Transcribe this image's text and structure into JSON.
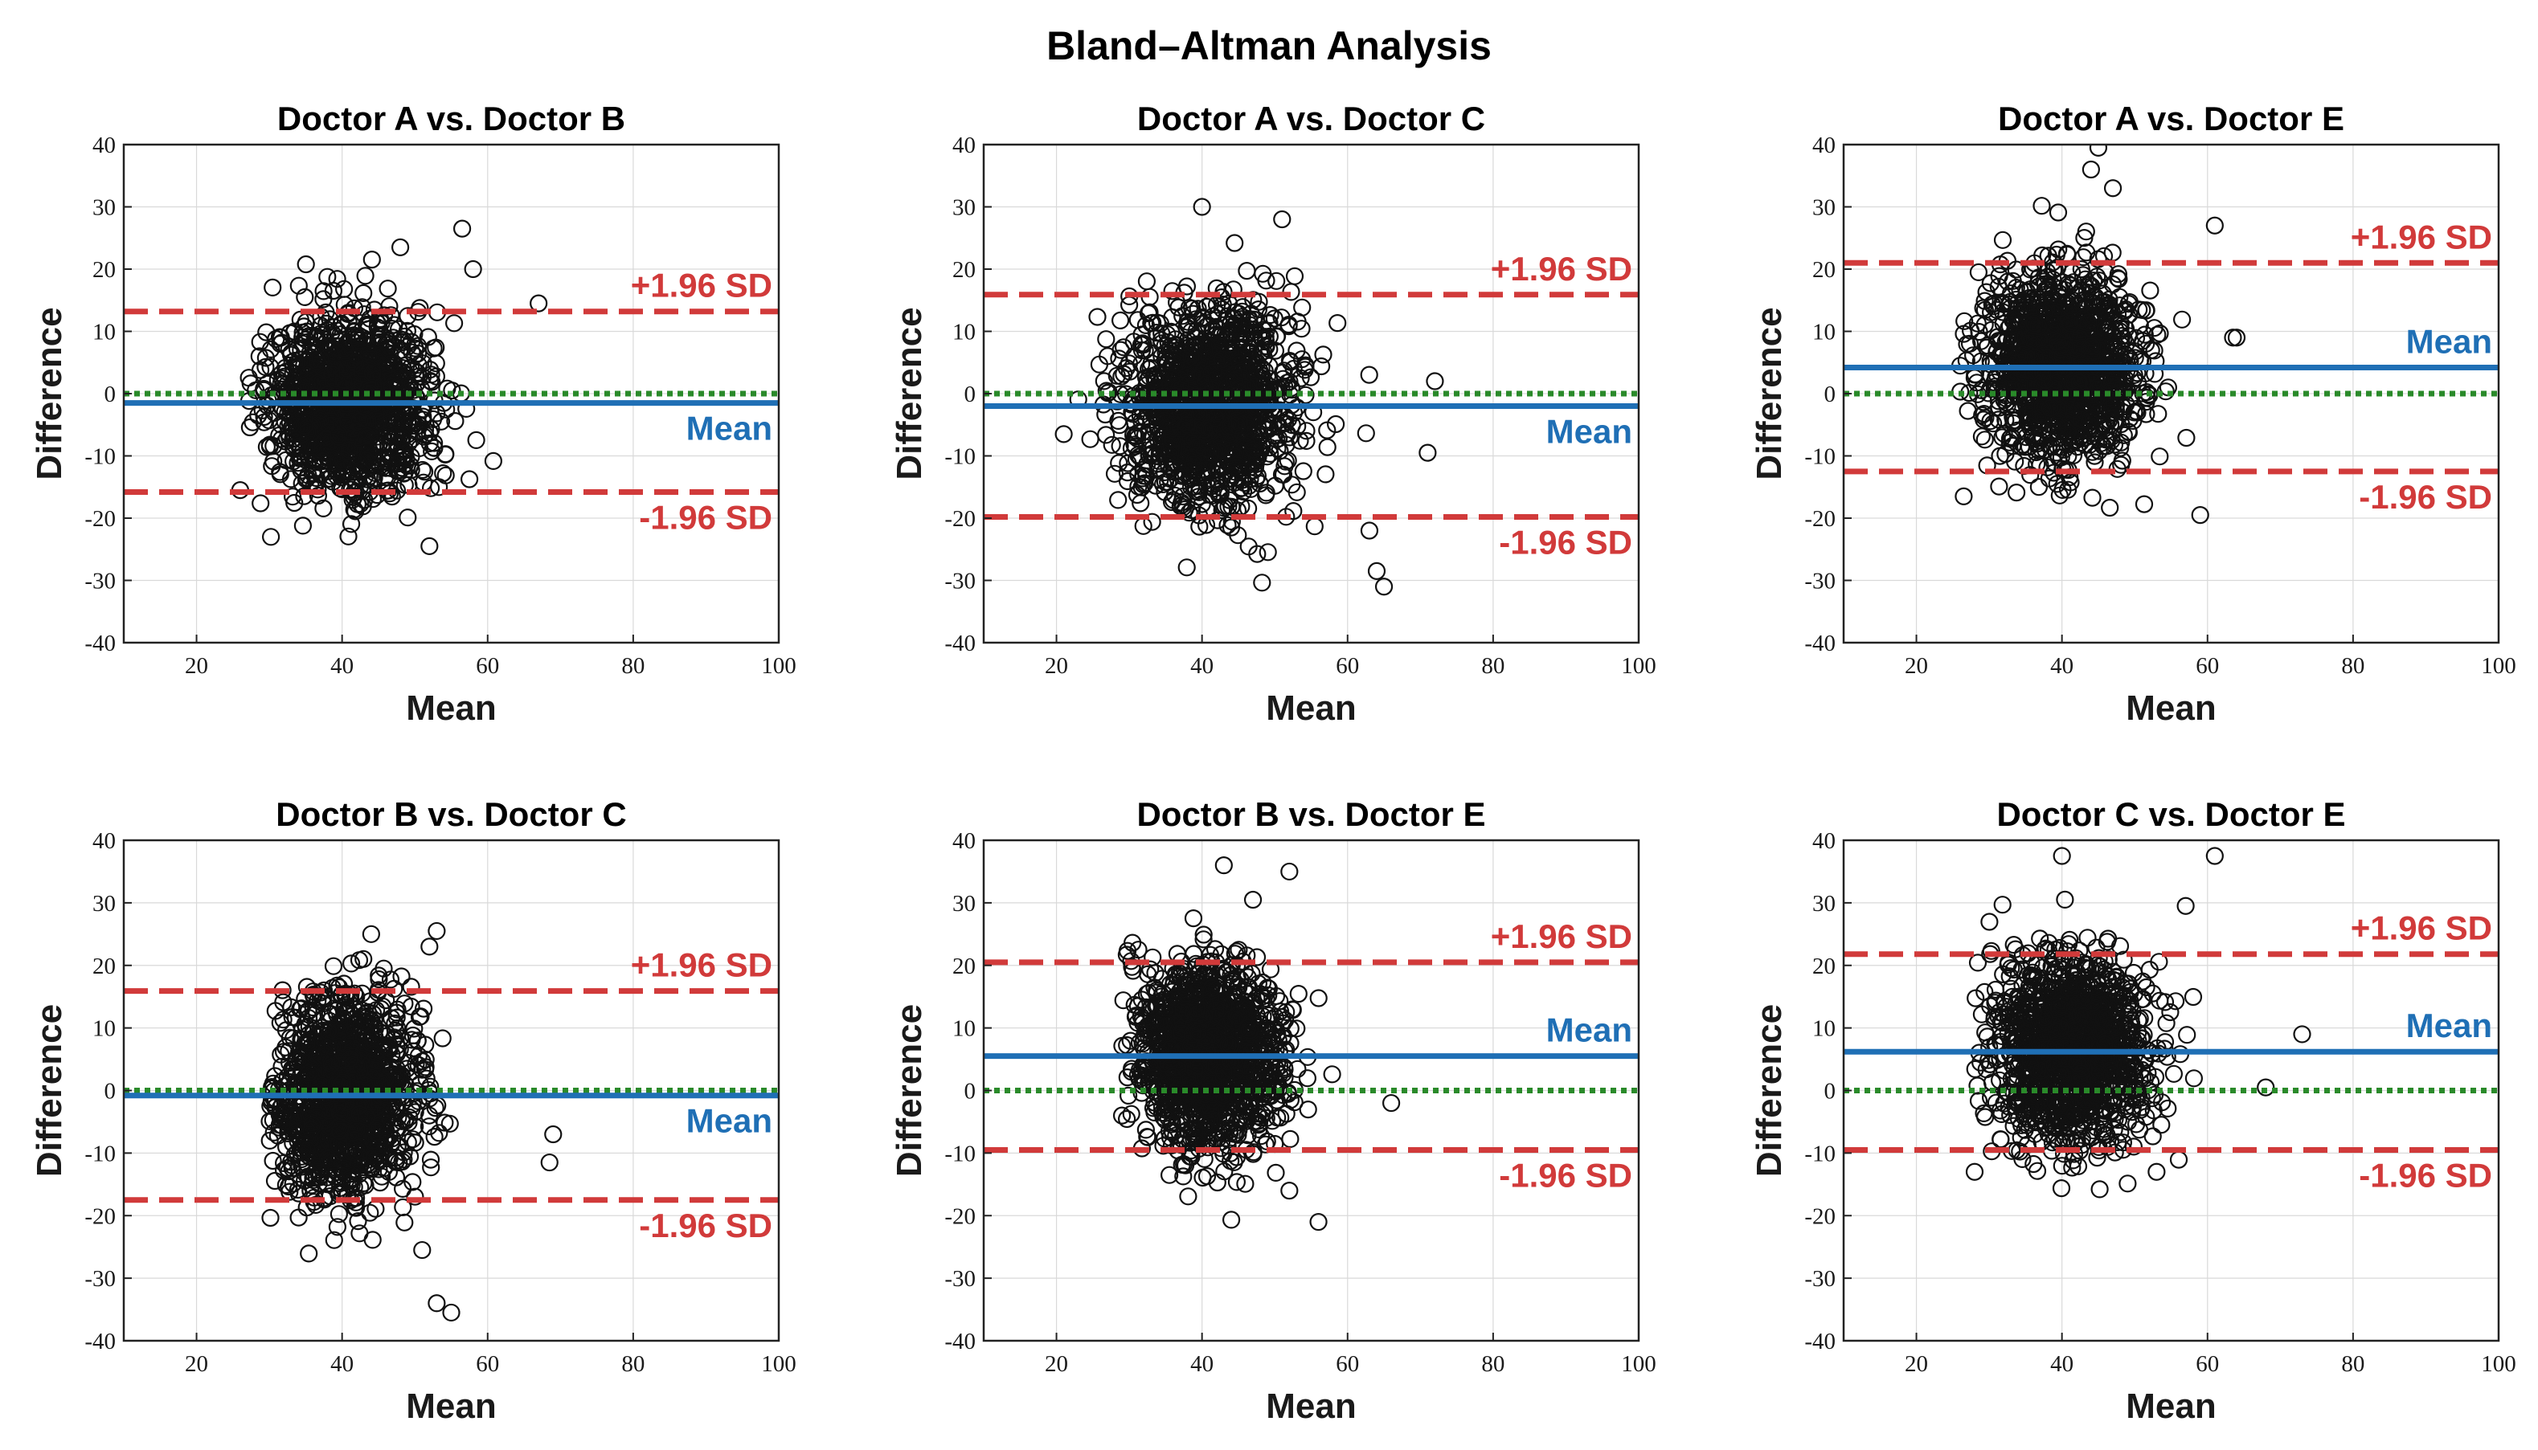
{
  "figure": {
    "title": "Bland–Altman Analysis"
  },
  "style": {
    "mean_color": "#1f6fb5",
    "limit_color": "#d13a3a",
    "zero_color": "#2a8a2a",
    "point_color": "#111111"
  },
  "chart_data": [
    {
      "type": "scatter",
      "title": "Doctor A vs. Doctor B",
      "xlabel": "Mean",
      "ylabel": "Difference",
      "xlim": [
        10,
        100
      ],
      "ylim": [
        -40,
        40
      ],
      "xticks": [
        20,
        40,
        60,
        80,
        100
      ],
      "yticks": [
        40,
        30,
        20,
        10,
        0,
        -10,
        -20,
        -30,
        -40
      ],
      "mean_diff": -1.5,
      "upper_loa": 13.2,
      "lower_loa": -15.8,
      "labels": {
        "upper": "+1.96 SD",
        "mean": "Mean",
        "lower": "-1.96 SD"
      },
      "cluster": {
        "x_center": 41,
        "x_sd": 5.5,
        "x_range": [
          26,
          69
        ],
        "y_sd": 6.8,
        "y_range": [
          -25,
          27
        ]
      },
      "outliers": [
        [
          56.5,
          26.5
        ],
        [
          48,
          23.5
        ],
        [
          58,
          20
        ],
        [
          67,
          14.5
        ],
        [
          52,
          -24.5
        ],
        [
          26,
          -15.5
        ]
      ]
    },
    {
      "type": "scatter",
      "title": "Doctor A vs. Doctor C",
      "xlabel": "Mean",
      "ylabel": "Difference",
      "xlim": [
        10,
        100
      ],
      "ylim": [
        -40,
        40
      ],
      "xticks": [
        20,
        40,
        60,
        80,
        100
      ],
      "yticks": [
        40,
        30,
        20,
        10,
        0,
        -10,
        -20,
        -30,
        -40
      ],
      "mean_diff": -2.0,
      "upper_loa": 15.9,
      "lower_loa": -19.8,
      "labels": {
        "upper": "+1.96 SD",
        "mean": "Mean",
        "lower": "-1.96 SD"
      },
      "cluster": {
        "x_center": 41,
        "x_sd": 5.8,
        "x_range": [
          21,
          73
        ],
        "y_sd": 8.0,
        "y_range": [
          -31,
          30
        ]
      },
      "outliers": [
        [
          40,
          30
        ],
        [
          51,
          28
        ],
        [
          21,
          -6.5
        ],
        [
          72,
          2
        ],
        [
          71,
          -9.5
        ],
        [
          65,
          -31
        ],
        [
          64,
          -28.5
        ],
        [
          63,
          -22
        ]
      ]
    },
    {
      "type": "scatter",
      "title": "Doctor A vs. Doctor E",
      "xlabel": "Mean",
      "ylabel": "Difference",
      "xlim": [
        10,
        100
      ],
      "ylim": [
        -40,
        40
      ],
      "xticks": [
        20,
        40,
        60,
        80,
        100
      ],
      "yticks": [
        40,
        30,
        20,
        10,
        0,
        -10,
        -20,
        -30,
        -40
      ],
      "mean_diff": 4.2,
      "upper_loa": 21.0,
      "lower_loa": -12.5,
      "labels": {
        "upper": "+1.96 SD",
        "mean": "Mean",
        "lower": "-1.96 SD"
      },
      "cluster": {
        "x_center": 40,
        "x_sd": 5.2,
        "x_range": [
          26,
          64
        ],
        "y_sd": 7.5,
        "y_range": [
          -20,
          40
        ]
      },
      "outliers": [
        [
          45,
          39.5
        ],
        [
          44,
          36
        ],
        [
          47,
          33
        ],
        [
          61,
          27
        ],
        [
          63.5,
          9
        ],
        [
          64,
          9
        ],
        [
          59,
          -19.5
        ],
        [
          26.5,
          -16.5
        ]
      ]
    },
    {
      "type": "scatter",
      "title": "Doctor B vs. Doctor C",
      "xlabel": "Mean",
      "ylabel": "Difference",
      "xlim": [
        10,
        100
      ],
      "ylim": [
        -40,
        40
      ],
      "xticks": [
        20,
        40,
        60,
        80,
        100
      ],
      "yticks": [
        40,
        30,
        20,
        10,
        0,
        -10,
        -20,
        -30,
        -40
      ],
      "mean_diff": -0.8,
      "upper_loa": 15.9,
      "lower_loa": -17.5,
      "labels": {
        "upper": "+1.96 SD",
        "mean": "Mean",
        "lower": "-1.96 SD"
      },
      "cluster": {
        "x_center": 40,
        "x_sd": 5.2,
        "x_range": [
          30,
          70
        ],
        "y_sd": 8.2,
        "y_range": [
          -35,
          26
        ]
      },
      "outliers": [
        [
          53,
          25.5
        ],
        [
          44,
          25
        ],
        [
          52,
          23
        ],
        [
          55,
          -35.5
        ],
        [
          53,
          -34
        ],
        [
          51,
          -25.5
        ],
        [
          69,
          -7
        ],
        [
          68.5,
          -11.5
        ]
      ]
    },
    {
      "type": "scatter",
      "title": "Doctor B vs. Doctor E",
      "xlabel": "Mean",
      "ylabel": "Difference",
      "xlim": [
        10,
        100
      ],
      "ylim": [
        -40,
        40
      ],
      "xticks": [
        20,
        40,
        60,
        80,
        100
      ],
      "yticks": [
        40,
        30,
        20,
        10,
        0,
        -10,
        -20,
        -30,
        -40
      ],
      "mean_diff": 5.5,
      "upper_loa": 20.5,
      "lower_loa": -9.5,
      "labels": {
        "upper": "+1.96 SD",
        "mean": "Mean",
        "lower": "-1.96 SD"
      },
      "cluster": {
        "x_center": 41,
        "x_sd": 5.0,
        "x_range": [
          29,
          66
        ],
        "y_sd": 7.2,
        "y_range": [
          -21,
          36
        ]
      },
      "outliers": [
        [
          43,
          36
        ],
        [
          52,
          35
        ],
        [
          47,
          30.5
        ],
        [
          56,
          -21
        ],
        [
          52,
          -16
        ],
        [
          66,
          -2
        ],
        [
          29,
          -4
        ]
      ]
    },
    {
      "type": "scatter",
      "title": "Doctor C vs. Doctor E",
      "xlabel": "Mean",
      "ylabel": "Difference",
      "xlim": [
        10,
        100
      ],
      "ylim": [
        -40,
        40
      ],
      "xticks": [
        20,
        40,
        60,
        80,
        100
      ],
      "yticks": [
        40,
        30,
        20,
        10,
        0,
        -10,
        -20,
        -30,
        -40
      ],
      "mean_diff": 6.2,
      "upper_loa": 21.8,
      "lower_loa": -9.5,
      "labels": {
        "upper": "+1.96 SD",
        "mean": "Mean",
        "lower": "-1.96 SD"
      },
      "cluster": {
        "x_center": 41,
        "x_sd": 5.4,
        "x_range": [
          28,
          74
        ],
        "y_sd": 7.5,
        "y_range": [
          -16,
          38
        ]
      },
      "outliers": [
        [
          40,
          37.5
        ],
        [
          61,
          37.5
        ],
        [
          57,
          29.5
        ],
        [
          73,
          9
        ],
        [
          68,
          0.5
        ],
        [
          28,
          -13
        ],
        [
          53,
          -13
        ]
      ]
    }
  ]
}
